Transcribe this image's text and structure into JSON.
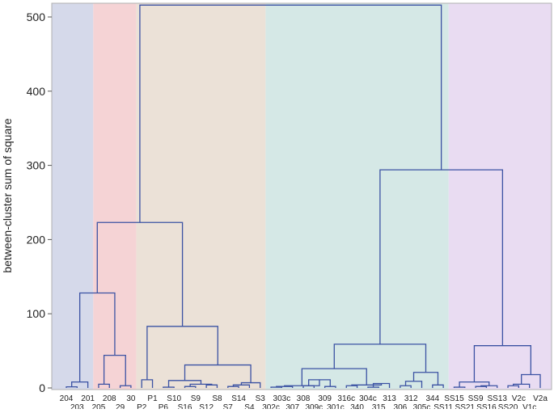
{
  "chart_data": {
    "type": "dendrogram",
    "title": "",
    "xlabel": "",
    "ylabel": "between-cluster sum of square",
    "ylim": [
      0,
      520
    ],
    "yticks": [
      0,
      100,
      200,
      300,
      400,
      500
    ],
    "leaves": [
      "204",
      "203",
      "201",
      "205",
      "208",
      "29",
      "30",
      "P2",
      "P1",
      "P6",
      "S10",
      "S16",
      "S9",
      "S12",
      "S8",
      "S7",
      "S14",
      "S4",
      "S3",
      "302c",
      "303c",
      "307",
      "308",
      "309c",
      "309",
      "301c",
      "316c",
      "340",
      "304c",
      "315",
      "313",
      "306",
      "312",
      "305c",
      "344",
      "SS11",
      "SS15",
      "SS21",
      "SS9",
      "SS16",
      "SS13",
      "SS20",
      "V2c",
      "V1c",
      "V2a"
    ],
    "regions": [
      {
        "from_leaf": 0,
        "to_leaf": 2,
        "color": "#d5d9ea"
      },
      {
        "from_leaf": 3,
        "to_leaf": 6,
        "color": "#f5d3d5"
      },
      {
        "from_leaf": 7,
        "to_leaf": 18,
        "color": "#ebe1d7"
      },
      {
        "from_leaf": 19,
        "to_leaf": 35,
        "color": "#d5e8e6"
      },
      {
        "from_leaf": 36,
        "to_leaf": 44,
        "color": "#e9dcf2"
      }
    ],
    "merges": [
      {
        "a": "L0",
        "b": "L1",
        "h": 1.5
      },
      {
        "a": "M0",
        "b": "L2",
        "h": 8
      },
      {
        "a": "L3",
        "b": "L4",
        "h": 5
      },
      {
        "a": "L5",
        "b": "L6",
        "h": 3
      },
      {
        "a": "M2",
        "b": "M3",
        "h": 44
      },
      {
        "a": "M1",
        "b": "M4",
        "h": 128
      },
      {
        "a": "L7",
        "b": "L8",
        "h": 11
      },
      {
        "a": "L9",
        "b": "L10",
        "h": 1
      },
      {
        "a": "L11",
        "b": "L12",
        "h": 2
      },
      {
        "a": "L13",
        "b": "L14",
        "h": 4
      },
      {
        "a": "M8",
        "b": "M9",
        "h": 5
      },
      {
        "a": "M7",
        "b": "M10",
        "h": 10
      },
      {
        "a": "L15",
        "b": "L16",
        "h": 2
      },
      {
        "a": "M12",
        "b": "L17",
        "h": 4
      },
      {
        "a": "M13",
        "b": "L18",
        "h": 7
      },
      {
        "a": "M11",
        "b": "M14",
        "h": 31
      },
      {
        "a": "M6",
        "b": "M15",
        "h": 83
      },
      {
        "a": "M5",
        "b": "M16",
        "h": 223
      },
      {
        "a": "L19",
        "b": "L20",
        "h": 1
      },
      {
        "a": "M18",
        "b": "L21",
        "h": 2
      },
      {
        "a": "L22",
        "b": "L23",
        "h": 3
      },
      {
        "a": "L24",
        "b": "L25",
        "h": 2
      },
      {
        "a": "M20",
        "b": "M21",
        "h": 11
      },
      {
        "a": "M19",
        "b": "M22",
        "h": 3
      },
      {
        "a": "L26",
        "b": "L27",
        "h": 3
      },
      {
        "a": "L28",
        "b": "L29",
        "h": 1
      },
      {
        "a": "M25",
        "b": "L30",
        "h": 6
      },
      {
        "a": "M24",
        "b": "M26",
        "h": 4
      },
      {
        "a": "M23",
        "b": "M27",
        "h": 26
      },
      {
        "a": "L31",
        "b": "L32",
        "h": 3
      },
      {
        "a": "M29",
        "b": "L33",
        "h": 9
      },
      {
        "a": "L34",
        "b": "L35",
        "h": 4
      },
      {
        "a": "M30",
        "b": "M31",
        "h": 21
      },
      {
        "a": "M28",
        "b": "M32",
        "h": 59
      },
      {
        "a": "L36",
        "b": "L37",
        "h": 1
      },
      {
        "a": "L38",
        "b": "L39",
        "h": 2
      },
      {
        "a": "M35",
        "b": "L40",
        "h": 3
      },
      {
        "a": "M34",
        "b": "M36",
        "h": 8
      },
      {
        "a": "L41",
        "b": "L42",
        "h": 3
      },
      {
        "a": "M38",
        "b": "L43",
        "h": 5
      },
      {
        "a": "M39",
        "b": "L44",
        "h": 18
      },
      {
        "a": "M37",
        "b": "M40",
        "h": 57
      },
      {
        "a": "M33",
        "b": "M41",
        "h": 294
      },
      {
        "a": "M17",
        "b": "M42",
        "h": 516
      }
    ],
    "line_color": "#3b52a3",
    "grid": false
  }
}
